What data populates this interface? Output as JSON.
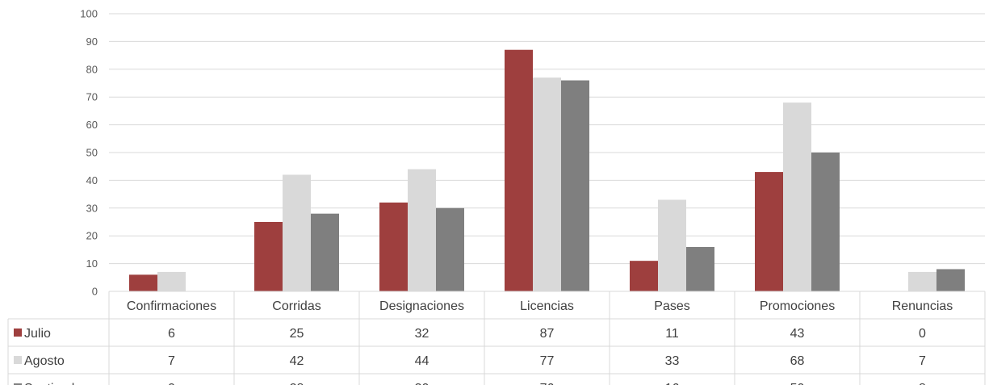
{
  "chart_data": {
    "type": "bar",
    "categories": [
      "Confirmaciones",
      "Corridas",
      "Designaciones",
      "Licencias",
      "Pases",
      "Promociones",
      "Renuncias"
    ],
    "series": [
      {
        "name": "Julio",
        "color": "#9e3f3e",
        "values": [
          6,
          25,
          32,
          87,
          11,
          43,
          0
        ]
      },
      {
        "name": "Agosto",
        "color": "#d9d9d9",
        "values": [
          7,
          42,
          44,
          77,
          33,
          68,
          7
        ]
      },
      {
        "name": "Septiembre",
        "color": "#7f7f7f",
        "values": [
          0,
          28,
          30,
          76,
          16,
          50,
          8
        ]
      }
    ],
    "ylim": [
      0,
      100
    ],
    "yticks": [
      0,
      10,
      20,
      30,
      40,
      50,
      60,
      70,
      80,
      90,
      100
    ],
    "grid": true,
    "legend_placement": "data-table",
    "data_table": true
  }
}
